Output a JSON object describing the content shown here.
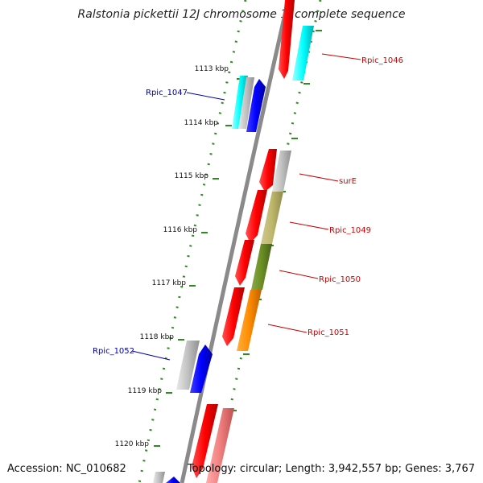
{
  "title": "Ralstonia pickettii 12J chromosome 1, complete sequence",
  "accession": "Accession: NC_010682",
  "topology": "Topology: circular; Length: 3,942,557 bp; Genes: 3,767",
  "colors": {
    "backbone": "#8a8a8a",
    "ticks": "#2e8b22",
    "forward_label": "#cc0000",
    "reverse_label": "#0000aa"
  },
  "scale_labels": [
    "1113 kbp",
    "1114 kbp",
    "1115 kbp",
    "1116 kbp",
    "1117 kbp",
    "1118 kbp",
    "1119 kbp",
    "1120 kbp"
  ],
  "gene_labels": [
    {
      "name": "Rpic_1046",
      "color": "#cc0000"
    },
    {
      "name": "Rpic_1047",
      "color": "#0000aa"
    },
    {
      "name": "surE",
      "color": "#cc0000"
    },
    {
      "name": "Rpic_1049",
      "color": "#cc0000"
    },
    {
      "name": "Rpic_1050",
      "color": "#cc0000"
    },
    {
      "name": "Rpic_1051",
      "color": "#cc0000"
    },
    {
      "name": "Rpic_1052",
      "color": "#0000aa"
    }
  ]
}
